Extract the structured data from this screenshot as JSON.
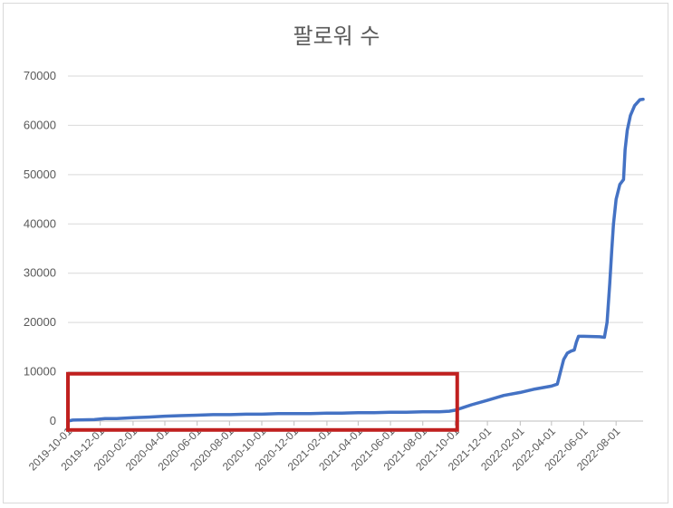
{
  "chart_data": {
    "type": "line",
    "title": "팔로워 수",
    "xlabel": "",
    "ylabel": "",
    "x_start": "2019-10-01",
    "x_end": "2022-09-21",
    "ylim": [
      0,
      70000
    ],
    "yticks": [
      "0",
      "10000",
      "20000",
      "30000",
      "40000",
      "50000",
      "60000",
      "70000"
    ],
    "xtick_labels": [
      "2019-10-01",
      "2019-12-01",
      "2020-02-01",
      "2020-04-01",
      "2020-06-01",
      "2020-08-01",
      "2020-10-01",
      "2020-12-01",
      "2021-02-01",
      "2021-04-01",
      "2021-06-01",
      "2021-08-01",
      "2021-10-01",
      "2021-12-01",
      "2022-02-01",
      "2022-04-01",
      "2022-06-01",
      "2022-08-01"
    ],
    "gridlines": true,
    "legend": "none",
    "series": [
      {
        "color": "#4472C4",
        "points": [
          [
            "2019-10-01",
            0
          ],
          [
            "2019-10-10",
            200
          ],
          [
            "2019-11-20",
            300
          ],
          [
            "2019-12-10",
            500
          ],
          [
            "2020-01-01",
            500
          ],
          [
            "2020-02-01",
            700
          ],
          [
            "2020-03-01",
            800
          ],
          [
            "2020-04-01",
            1000
          ],
          [
            "2020-05-01",
            1100
          ],
          [
            "2020-06-01",
            1200
          ],
          [
            "2020-07-01",
            1300
          ],
          [
            "2020-08-01",
            1300
          ],
          [
            "2020-09-01",
            1400
          ],
          [
            "2020-10-01",
            1400
          ],
          [
            "2020-11-01",
            1500
          ],
          [
            "2020-12-01",
            1500
          ],
          [
            "2021-01-01",
            1500
          ],
          [
            "2021-02-01",
            1600
          ],
          [
            "2021-03-01",
            1600
          ],
          [
            "2021-04-01",
            1700
          ],
          [
            "2021-05-01",
            1700
          ],
          [
            "2021-06-01",
            1800
          ],
          [
            "2021-07-01",
            1800
          ],
          [
            "2021-08-01",
            1900
          ],
          [
            "2021-09-01",
            1900
          ],
          [
            "2021-09-20",
            2000
          ],
          [
            "2021-10-01",
            2200
          ],
          [
            "2021-10-15",
            2700
          ],
          [
            "2021-11-01",
            3300
          ],
          [
            "2021-12-01",
            4200
          ],
          [
            "2022-01-01",
            5200
          ],
          [
            "2022-02-01",
            5800
          ],
          [
            "2022-03-01",
            6500
          ],
          [
            "2022-04-01",
            7100
          ],
          [
            "2022-04-12",
            7500
          ],
          [
            "2022-04-18",
            10000
          ],
          [
            "2022-04-24",
            12500
          ],
          [
            "2022-05-01",
            13800
          ],
          [
            "2022-05-08",
            14200
          ],
          [
            "2022-05-14",
            14400
          ],
          [
            "2022-05-18",
            16000
          ],
          [
            "2022-05-22",
            17200
          ],
          [
            "2022-06-01",
            17200
          ],
          [
            "2022-07-01",
            17100
          ],
          [
            "2022-07-10",
            17000
          ],
          [
            "2022-07-15",
            20000
          ],
          [
            "2022-07-20",
            28000
          ],
          [
            "2022-07-24",
            35000
          ],
          [
            "2022-07-27",
            40000
          ],
          [
            "2022-08-01",
            45000
          ],
          [
            "2022-08-08",
            48000
          ],
          [
            "2022-08-15",
            49000
          ],
          [
            "2022-08-18",
            55000
          ],
          [
            "2022-08-22",
            59000
          ],
          [
            "2022-08-28",
            62000
          ],
          [
            "2022-09-05",
            64000
          ],
          [
            "2022-09-15",
            65200
          ],
          [
            "2022-09-21",
            65300
          ]
        ]
      }
    ],
    "annotations": [
      {
        "shape": "rectangle",
        "color": "#C0201F",
        "x_range": [
          "2019-10-01",
          "2021-10-05"
        ],
        "y_range": [
          -1800,
          9600
        ]
      }
    ]
  }
}
